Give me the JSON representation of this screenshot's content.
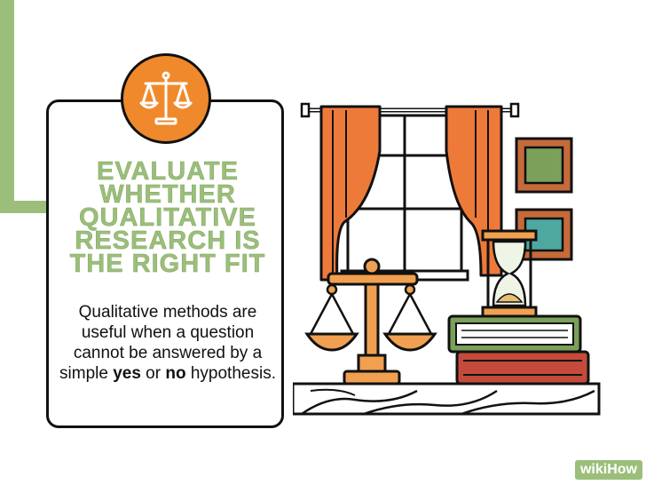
{
  "title_lines": [
    "EVALUATE",
    "WHETHER",
    "QUALITATIVE",
    "RESEARCH IS",
    "THE RIGHT FIT"
  ],
  "description": {
    "part1": "Qualitative methods are useful when a question cannot be answered by a simple ",
    "yes": "yes",
    "middle": " or ",
    "no": "no",
    "part2": " hypothesis."
  },
  "logo": {
    "wiki": "wiki",
    "how": "How"
  },
  "icons": {
    "badge": "scales-icon",
    "scene": [
      "window-illustration",
      "curtains",
      "picture-frames",
      "hourglass-icon",
      "books-stack",
      "scales-illustration"
    ]
  },
  "colors": {
    "accent_green": "#9bbf7a",
    "accent_orange": "#f0892b",
    "outline": "#111111"
  }
}
